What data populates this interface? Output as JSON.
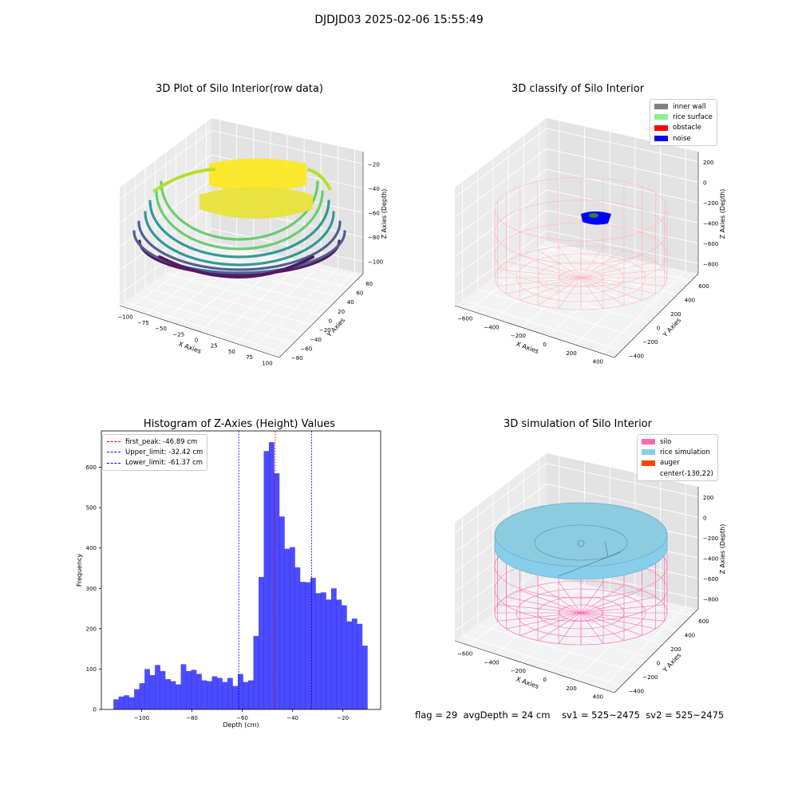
{
  "figure": {
    "suptitle": "DJDJD03 2025-02-06 15:55:49"
  },
  "panels": {
    "raw": {
      "title": "3D Plot of Silo Interior(row data)",
      "x_label": "X Axies",
      "y_label": "Y Axies",
      "z_label": "Z Axies (Depth)",
      "x_ticks": [
        "−100",
        "−75",
        "−50",
        "−25",
        "0",
        "25",
        "50",
        "75",
        "100"
      ],
      "y_ticks": [
        "−80",
        "−60",
        "−40",
        "−20",
        "0",
        "20",
        "40",
        "60",
        "80"
      ],
      "z_ticks": [
        "−100",
        "−80",
        "−60",
        "−40",
        "−20"
      ],
      "colormap": [
        "#440154",
        "#3b528b",
        "#21918c",
        "#5ec962",
        "#fde725"
      ]
    },
    "classify": {
      "title": "3D classify of Silo Interior",
      "x_label": "X Axies",
      "y_label": "Y Axies",
      "z_label": "Z Axies (Depth)",
      "x_ticks": [
        "−600",
        "−400",
        "−200",
        "0",
        "200",
        "400"
      ],
      "y_ticks": [
        "−400",
        "−200",
        "0",
        "200",
        "400",
        "600"
      ],
      "z_ticks": [
        "−800",
        "−600",
        "−400",
        "−200",
        "0",
        "200"
      ],
      "legend": [
        {
          "label": "inner wall",
          "color": "#808080"
        },
        {
          "label": "rice surface",
          "color": "#90ee90"
        },
        {
          "label": "obstacle",
          "color": "#ff0000"
        },
        {
          "label": "noise",
          "color": "#0000ff"
        }
      ],
      "wall_color": "#ffb6c1"
    },
    "simulation": {
      "title": "3D simulation of Silo Interior",
      "x_label": "X Axies",
      "y_label": "Y Axies",
      "z_label": "Z Axies (Depth)",
      "x_ticks": [
        "−600",
        "−400",
        "−200",
        "0",
        "200",
        "400"
      ],
      "y_ticks": [
        "−400",
        "−200",
        "0",
        "200",
        "400",
        "600"
      ],
      "z_ticks": [
        "−800",
        "−600",
        "−400",
        "−200",
        "0",
        "200"
      ],
      "legend": [
        {
          "label": "silo",
          "color": "#ff69b4"
        },
        {
          "label": "rice simulation",
          "color": "#87ceeb"
        },
        {
          "label": "auger",
          "color": "#ff4500"
        },
        {
          "label": "center(-130,22)",
          "color": ""
        }
      ]
    }
  },
  "footer": {
    "flag": "flag = 29",
    "avg": "avgDepth = 24 cm",
    "sv1": "sv1 = 525~2475",
    "sv2": "sv2 = 525~2475"
  },
  "chart_data": {
    "type": "bar",
    "title": "Histogram of Z-Axies (Height) Values",
    "xlabel": "Depth (cm)",
    "ylabel": "Frequency",
    "xlim": [
      -116,
      -5
    ],
    "ylim": [
      0,
      690
    ],
    "xticks": [
      -100,
      -80,
      -60,
      -40,
      -20
    ],
    "yticks": [
      0,
      100,
      200,
      300,
      400,
      500,
      600
    ],
    "bar_color": "#0000ff",
    "bin_start": -111.2,
    "bin_width": 2.06,
    "values": [
      25,
      32,
      35,
      30,
      50,
      65,
      100,
      85,
      110,
      95,
      75,
      70,
      62,
      112,
      95,
      98,
      88,
      72,
      70,
      82,
      78,
      68,
      78,
      58,
      88,
      68,
      72,
      182,
      328,
      640,
      662,
      585,
      478,
      398,
      402,
      352,
      316,
      315,
      326,
      288,
      290,
      272,
      300,
      272,
      258,
      218,
      225,
      212,
      158
    ],
    "vlines": [
      {
        "label": "first_peak: -46.89 cm",
        "x": -46.89,
        "color": "#ff0000"
      },
      {
        "label": "Upper_limit: -32.42 cm",
        "x": -32.42,
        "color": "#0000ff"
      },
      {
        "label": "Lower_limit: -61.37 cm",
        "x": -61.37,
        "color": "#0000ff"
      }
    ]
  }
}
